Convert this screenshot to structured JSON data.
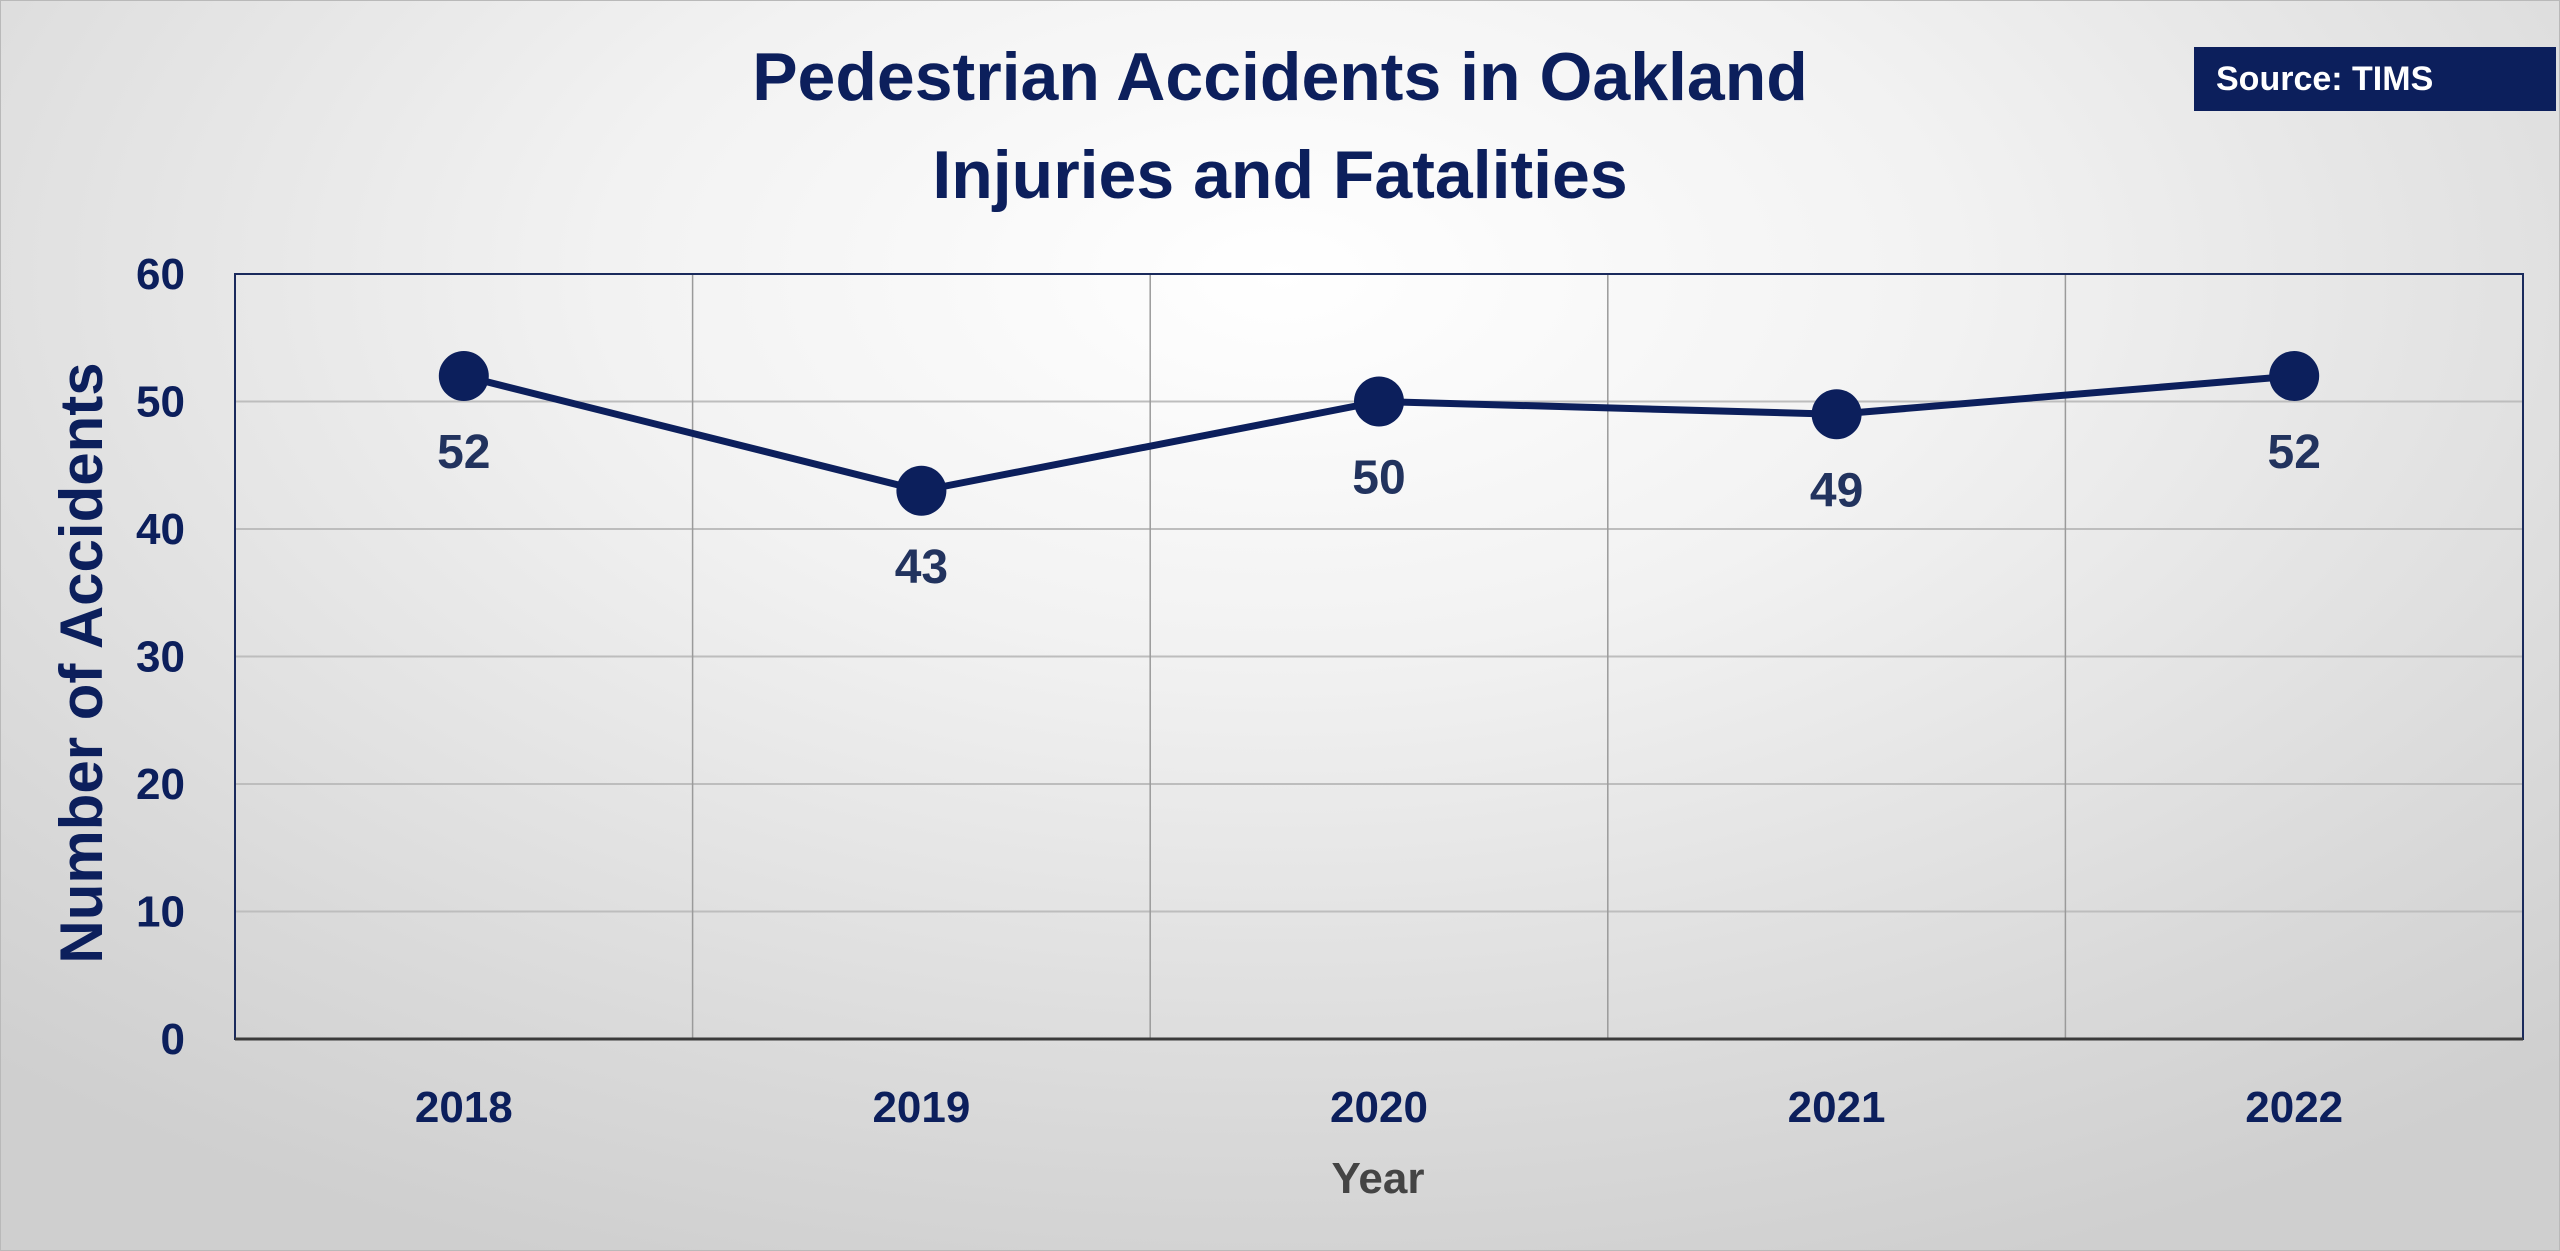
{
  "source_badge": "Source: TIMS",
  "chart_data": {
    "type": "line",
    "title_lines": [
      "Pedestrian Accidents in Oakland",
      "Injuries and Fatalities"
    ],
    "xlabel": "Year",
    "ylabel": "Number of Accidents",
    "categories": [
      "2018",
      "2019",
      "2020",
      "2021",
      "2022"
    ],
    "series": [
      {
        "values": [
          52,
          43,
          50,
          49,
          52
        ]
      }
    ],
    "data_labels": [
      "52",
      "43",
      "50",
      "49",
      "52"
    ],
    "ylim": [
      0,
      60
    ],
    "yticks": [
      0,
      10,
      20,
      30,
      40,
      50,
      60
    ],
    "ytick_labels": [
      "0",
      "10",
      "20",
      "30",
      "40",
      "50",
      "60"
    ],
    "grid": true,
    "legend": "none",
    "colors": {
      "line": "#0c1f5c",
      "marker": "#0c1f5c",
      "title": "#0c1f5c",
      "axis": "#1a2a5c",
      "grid": "#bdbdbd",
      "badge": "#0c1f5c"
    }
  }
}
